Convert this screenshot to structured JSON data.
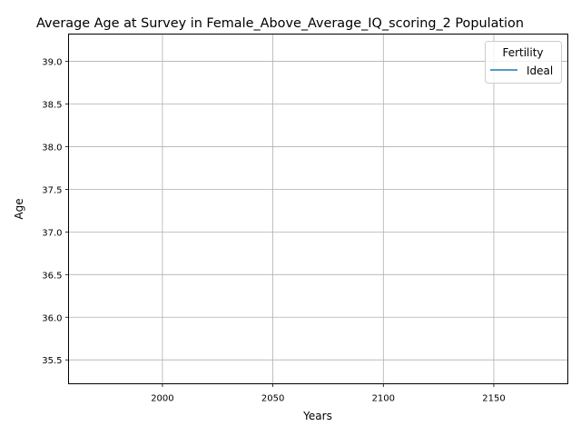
{
  "chart_data": {
    "type": "line",
    "title": "Average Age at Survey in Female_Above_Average_IQ_scoring_2 Population",
    "xlabel": "Years",
    "ylabel": "Age",
    "xlim": [
      1957.5,
      2183.5
    ],
    "ylim": [
      35.22,
      39.32
    ],
    "x_ticks": [
      2000,
      2050,
      2100,
      2150
    ],
    "x_tick_labels": [
      "2000",
      "2050",
      "2100",
      "2150"
    ],
    "y_ticks": [
      35.5,
      36.0,
      36.5,
      37.0,
      37.5,
      38.0,
      38.5,
      39.0
    ],
    "y_tick_labels": [
      "35.5",
      "36.0",
      "36.5",
      "37.0",
      "37.5",
      "38.0",
      "38.5",
      "39.0"
    ],
    "grid": true,
    "legend": {
      "title": "Fertility",
      "placement": "top-right"
    },
    "series": [
      {
        "name": "Ideal",
        "color": "#1f77b4",
        "x": [],
        "y": []
      }
    ]
  }
}
